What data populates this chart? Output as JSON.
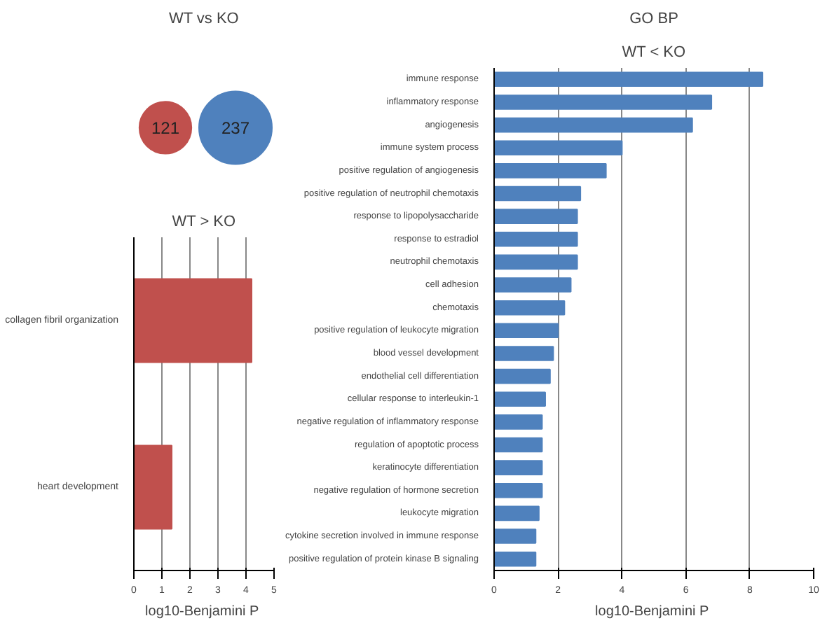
{
  "chart_data": [
    {
      "type": "other",
      "title": "WT vs KO",
      "categories": [
        null,
        null
      ],
      "values": [
        121,
        237
      ],
      "colors": [
        "#c0504d",
        "#4f81bd"
      ],
      "data_labels": true
    },
    {
      "type": "bar",
      "orientation": "horizontal",
      "title": "WT > KO",
      "xlabel": "log10-Benjamini  P",
      "categories": [
        "collagen fibril organization",
        "heart development"
      ],
      "values": [
        4.2,
        1.35
      ],
      "color": "#c0504d",
      "xlim": [
        0,
        5
      ],
      "xticks": [
        0,
        1,
        2,
        3,
        4,
        5
      ],
      "grid": "x"
    },
    {
      "type": "bar",
      "orientation": "horizontal",
      "title": "GO BP",
      "subtitle": "WT < KO",
      "xlabel": "log10-Benjamini  P",
      "categories": [
        "immune response",
        "inflammatory response",
        "angiogenesis",
        "immune system process",
        "positive regulation of angiogenesis",
        "positive regulation of neutrophil chemotaxis",
        "response to lipopolysaccharide",
        "response to estradiol",
        "neutrophil chemotaxis",
        "cell adhesion",
        "chemotaxis",
        "positive regulation of leukocyte migration",
        "blood vessel development",
        "endothelial cell differentiation",
        "cellular response to interleukin-1",
        "negative regulation of inflammatory response",
        "regulation of apoptotic process",
        "keratinocyte differentiation",
        "negative regulation of hormone secretion",
        "leukocyte migration",
        "cytokine secretion involved in immune response",
        "positive regulation of protein kinase B signaling"
      ],
      "values": [
        8.4,
        6.8,
        6.2,
        4.0,
        3.5,
        2.7,
        2.6,
        2.6,
        2.6,
        2.4,
        2.2,
        2.0,
        1.85,
        1.75,
        1.6,
        1.5,
        1.5,
        1.5,
        1.5,
        1.4,
        1.3,
        1.3
      ],
      "color": "#4f81bd",
      "xlim": [
        0,
        10
      ],
      "xticks": [
        0,
        2,
        4,
        6,
        8,
        10
      ],
      "grid": "x"
    }
  ]
}
